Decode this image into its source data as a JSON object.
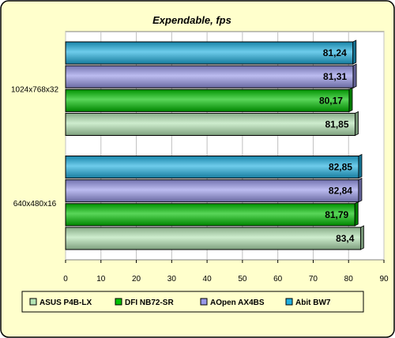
{
  "colors": {
    "background": "#ffffcc",
    "plot_area": "#ffffff",
    "ASUS P4B-LX": "#b4e4b4",
    "DFI NB72-SR": "#00c000",
    "AOpen AX4BS": "#9898e8",
    "Abit BW7": "#20b0e0"
  },
  "chart_data": {
    "type": "bar",
    "orientation": "horizontal",
    "title": "Expendable, fps",
    "categories": [
      "1024x768x32",
      "640x480x16"
    ],
    "series": [
      {
        "name": "Abit BW7",
        "values": [
          81.24,
          82.85
        ],
        "labels": [
          "81,24",
          "82,85"
        ]
      },
      {
        "name": "AOpen AX4BS",
        "values": [
          81.31,
          82.84
        ],
        "labels": [
          "81,31",
          "82,84"
        ]
      },
      {
        "name": "DFI NB72-SR",
        "values": [
          80.17,
          81.79
        ],
        "labels": [
          "80,17",
          "81,79"
        ]
      },
      {
        "name": "ASUS P4B-LX",
        "values": [
          81.85,
          83.4
        ],
        "labels": [
          "81,85",
          "83,4"
        ]
      }
    ],
    "xlim": [
      0,
      90
    ],
    "xticks": [
      0,
      10,
      20,
      30,
      40,
      50,
      60,
      70,
      80,
      90
    ],
    "grid": true,
    "legend": {
      "position": "bottom",
      "entries": [
        "ASUS P4B-LX",
        "DFI NB72-SR",
        "AOpen AX4BS",
        "Abit BW7"
      ]
    }
  }
}
